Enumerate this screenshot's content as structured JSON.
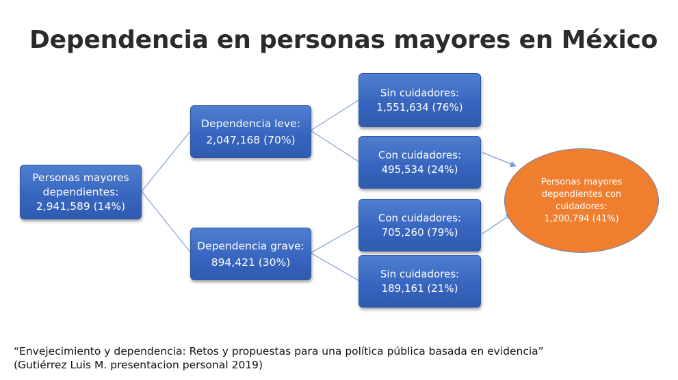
{
  "title": "Dependencia en personas mayores en México",
  "nodes": {
    "root": {
      "line1": "Personas mayores",
      "line2": "dependientes:",
      "line3": "2,941,589 (14%)"
    },
    "leve": {
      "line1": "Dependencia leve:",
      "line2": "2,047,168 (70%)"
    },
    "grave": {
      "line1": "Dependencia grave:",
      "line2": "894,421 (30%)"
    },
    "leve_sin": {
      "line1": "Sin cuidadores:",
      "line2": "1,551,634 (76%)"
    },
    "leve_con": {
      "line1": "Con cuidadores:",
      "line2": "495,534 (24%)"
    },
    "grave_con": {
      "line1": "Con cuidadores:",
      "line2": "705,260 (79%)"
    },
    "grave_sin": {
      "line1": "Sin cuidadores:",
      "line2": "189,161 (21%)"
    }
  },
  "result": {
    "line1": "Personas mayores",
    "line2": "dependientes con",
    "line3": "cuidadores:",
    "line4": "1,200,794 (41%)"
  },
  "citation": {
    "line1": "“Envejecimiento y dependencia: Retos y propuestas para una política pública basada en evidencia”",
    "line2": "(Gutiérrez Luis M. presentacion personal 2019)"
  },
  "colors": {
    "node_fill": "#3866bf",
    "result_fill": "#f07e2f",
    "connector": "#7a9ad0"
  }
}
